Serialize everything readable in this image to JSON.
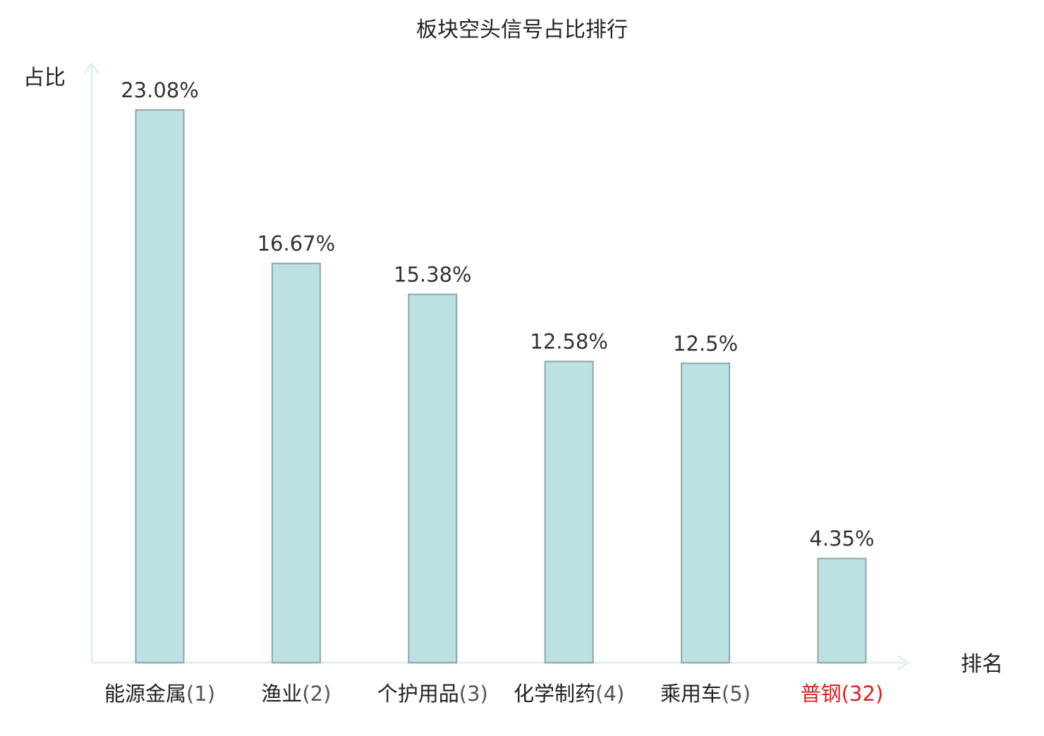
{
  "chart_data": {
    "type": "bar",
    "title": "板块空头信号占比排行",
    "ylabel": "占比",
    "xlabel": "排名",
    "categories": [
      {
        "name": "能源金属",
        "rank": "(1)",
        "highlight": false
      },
      {
        "name": "渔业",
        "rank": "(2)",
        "highlight": false
      },
      {
        "name": "个护用品",
        "rank": "(3)",
        "highlight": false
      },
      {
        "name": "化学制药",
        "rank": "(4)",
        "highlight": false
      },
      {
        "name": "乘用车",
        "rank": "(5)",
        "highlight": false
      },
      {
        "name": "普钢",
        "rank": "(32)",
        "highlight": true
      }
    ],
    "values": [
      23.08,
      16.67,
      15.38,
      12.58,
      12.5,
      4.35
    ],
    "value_labels": [
      "23.08%",
      "16.67%",
      "15.38%",
      "12.58%",
      "12.5%",
      "4.35%"
    ],
    "ylim": [
      0,
      23.08
    ],
    "grid": false,
    "colors": {
      "bar_fill": "#bde0e3",
      "bar_stroke": "#8aa8aa",
      "axis": "#e0f2f0",
      "text": "#222222",
      "value_text": "#333333",
      "rank_text": "#555555",
      "highlight": "#e02020"
    }
  }
}
